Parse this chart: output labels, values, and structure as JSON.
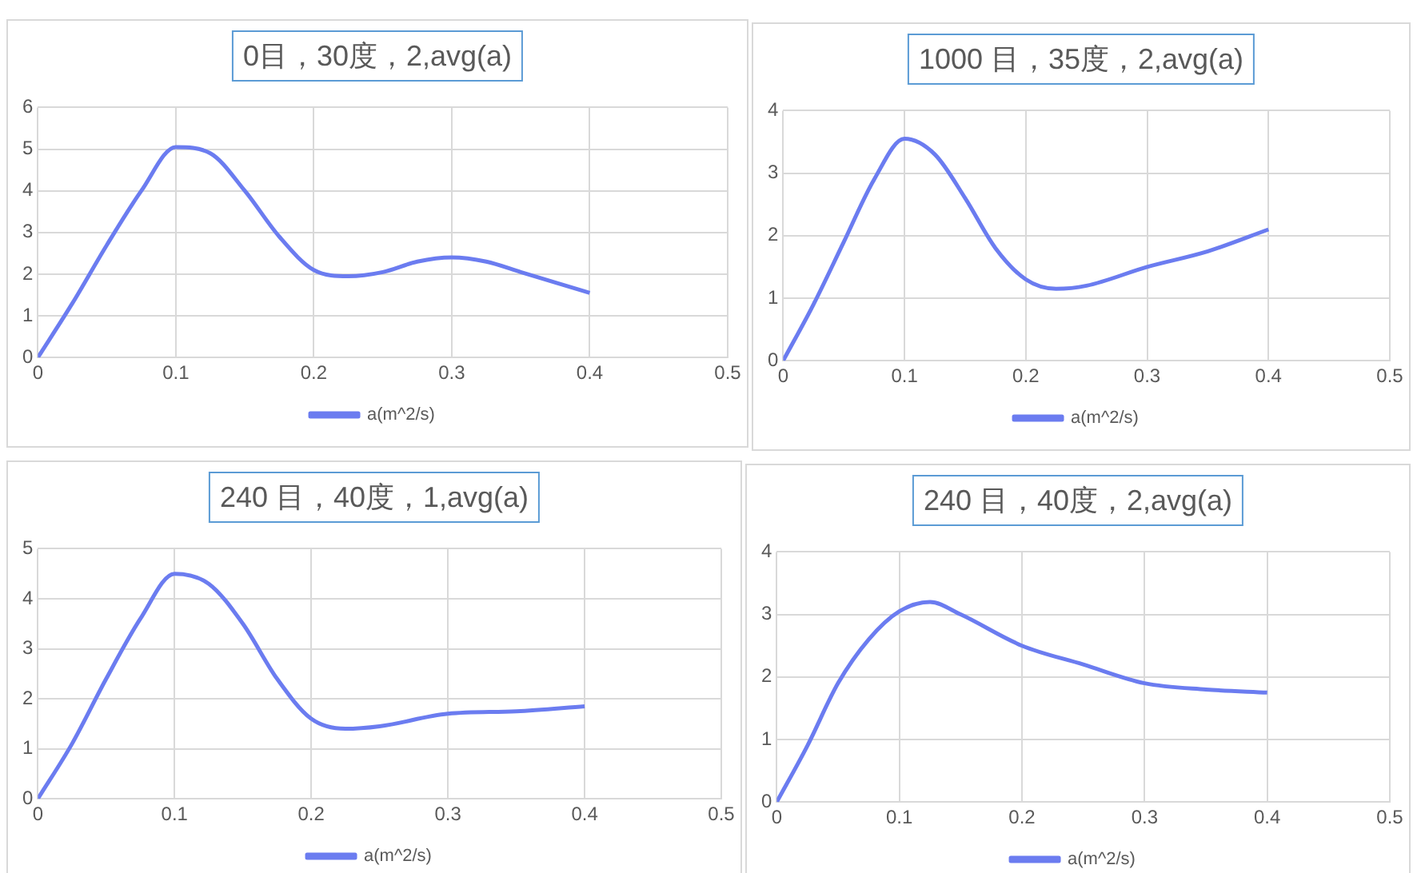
{
  "chart_data": [
    {
      "type": "line",
      "title": "0目，30度，2,avg(a)",
      "x": [
        0,
        0.025,
        0.05,
        0.075,
        0.1,
        0.125,
        0.15,
        0.175,
        0.2,
        0.225,
        0.25,
        0.275,
        0.3,
        0.325,
        0.35,
        0.375,
        0.4
      ],
      "series": [
        {
          "name": "a(m^2/s)",
          "color": "#6b7cf0",
          "values": [
            0,
            1.3,
            2.7,
            4.0,
            5.05,
            4.9,
            4.0,
            2.9,
            2.1,
            1.95,
            2.05,
            2.3,
            2.4,
            2.3,
            2.05,
            1.8,
            1.55
          ]
        }
      ],
      "xlim": [
        0,
        0.5
      ],
      "xticks": [
        0,
        0.1,
        0.2,
        0.3,
        0.4,
        0.5
      ],
      "ylim": [
        0,
        6
      ],
      "yticks": [
        0,
        1,
        2,
        3,
        4,
        5,
        6
      ],
      "grid": true,
      "legend": "bottom",
      "marker": "none"
    },
    {
      "type": "line",
      "title": "1000 目，35度，2,avg(a)",
      "x": [
        0,
        0.025,
        0.05,
        0.075,
        0.1,
        0.125,
        0.15,
        0.175,
        0.2,
        0.225,
        0.25,
        0.3,
        0.35,
        0.4
      ],
      "series": [
        {
          "name": "a(m^2/s)",
          "color": "#6b7cf0",
          "values": [
            0,
            0.9,
            1.9,
            2.9,
            3.55,
            3.3,
            2.6,
            1.8,
            1.3,
            1.15,
            1.2,
            1.5,
            1.75,
            2.1
          ]
        }
      ],
      "xlim": [
        0,
        0.5
      ],
      "xticks": [
        0,
        0.1,
        0.2,
        0.3,
        0.4,
        0.5
      ],
      "ylim": [
        0,
        4
      ],
      "yticks": [
        0,
        1,
        2,
        3,
        4
      ],
      "grid": true,
      "legend": "bottom",
      "marker": "none"
    },
    {
      "type": "line",
      "title": "240 目，40度，1,avg(a)",
      "x": [
        0,
        0.025,
        0.05,
        0.075,
        0.1,
        0.125,
        0.15,
        0.175,
        0.2,
        0.225,
        0.25,
        0.3,
        0.35,
        0.4
      ],
      "series": [
        {
          "name": "a(m^2/s)",
          "color": "#6b7cf0",
          "values": [
            0,
            1.1,
            2.4,
            3.6,
            4.5,
            4.3,
            3.5,
            2.4,
            1.6,
            1.4,
            1.45,
            1.7,
            1.75,
            1.85
          ]
        }
      ],
      "xlim": [
        0,
        0.5
      ],
      "xticks": [
        0,
        0.1,
        0.2,
        0.3,
        0.4,
        0.5
      ],
      "ylim": [
        0,
        5
      ],
      "yticks": [
        0,
        1,
        2,
        3,
        4,
        5
      ],
      "grid": true,
      "legend": "bottom",
      "marker": "none"
    },
    {
      "type": "line",
      "title": "240 目，40度，2,avg(a)",
      "x": [
        0,
        0.025,
        0.05,
        0.075,
        0.1,
        0.125,
        0.15,
        0.2,
        0.25,
        0.3,
        0.35,
        0.4
      ],
      "series": [
        {
          "name": "a(m^2/s)",
          "color": "#6b7cf0",
          "values": [
            0,
            0.9,
            1.9,
            2.6,
            3.05,
            3.2,
            3.0,
            2.5,
            2.2,
            1.9,
            1.8,
            1.75
          ]
        }
      ],
      "xlim": [
        0,
        0.5
      ],
      "xticks": [
        0,
        0.1,
        0.2,
        0.3,
        0.4,
        0.5
      ],
      "ylim": [
        0,
        4
      ],
      "yticks": [
        0,
        1,
        2,
        3,
        4
      ],
      "grid": true,
      "legend": "bottom",
      "marker": "none"
    }
  ]
}
